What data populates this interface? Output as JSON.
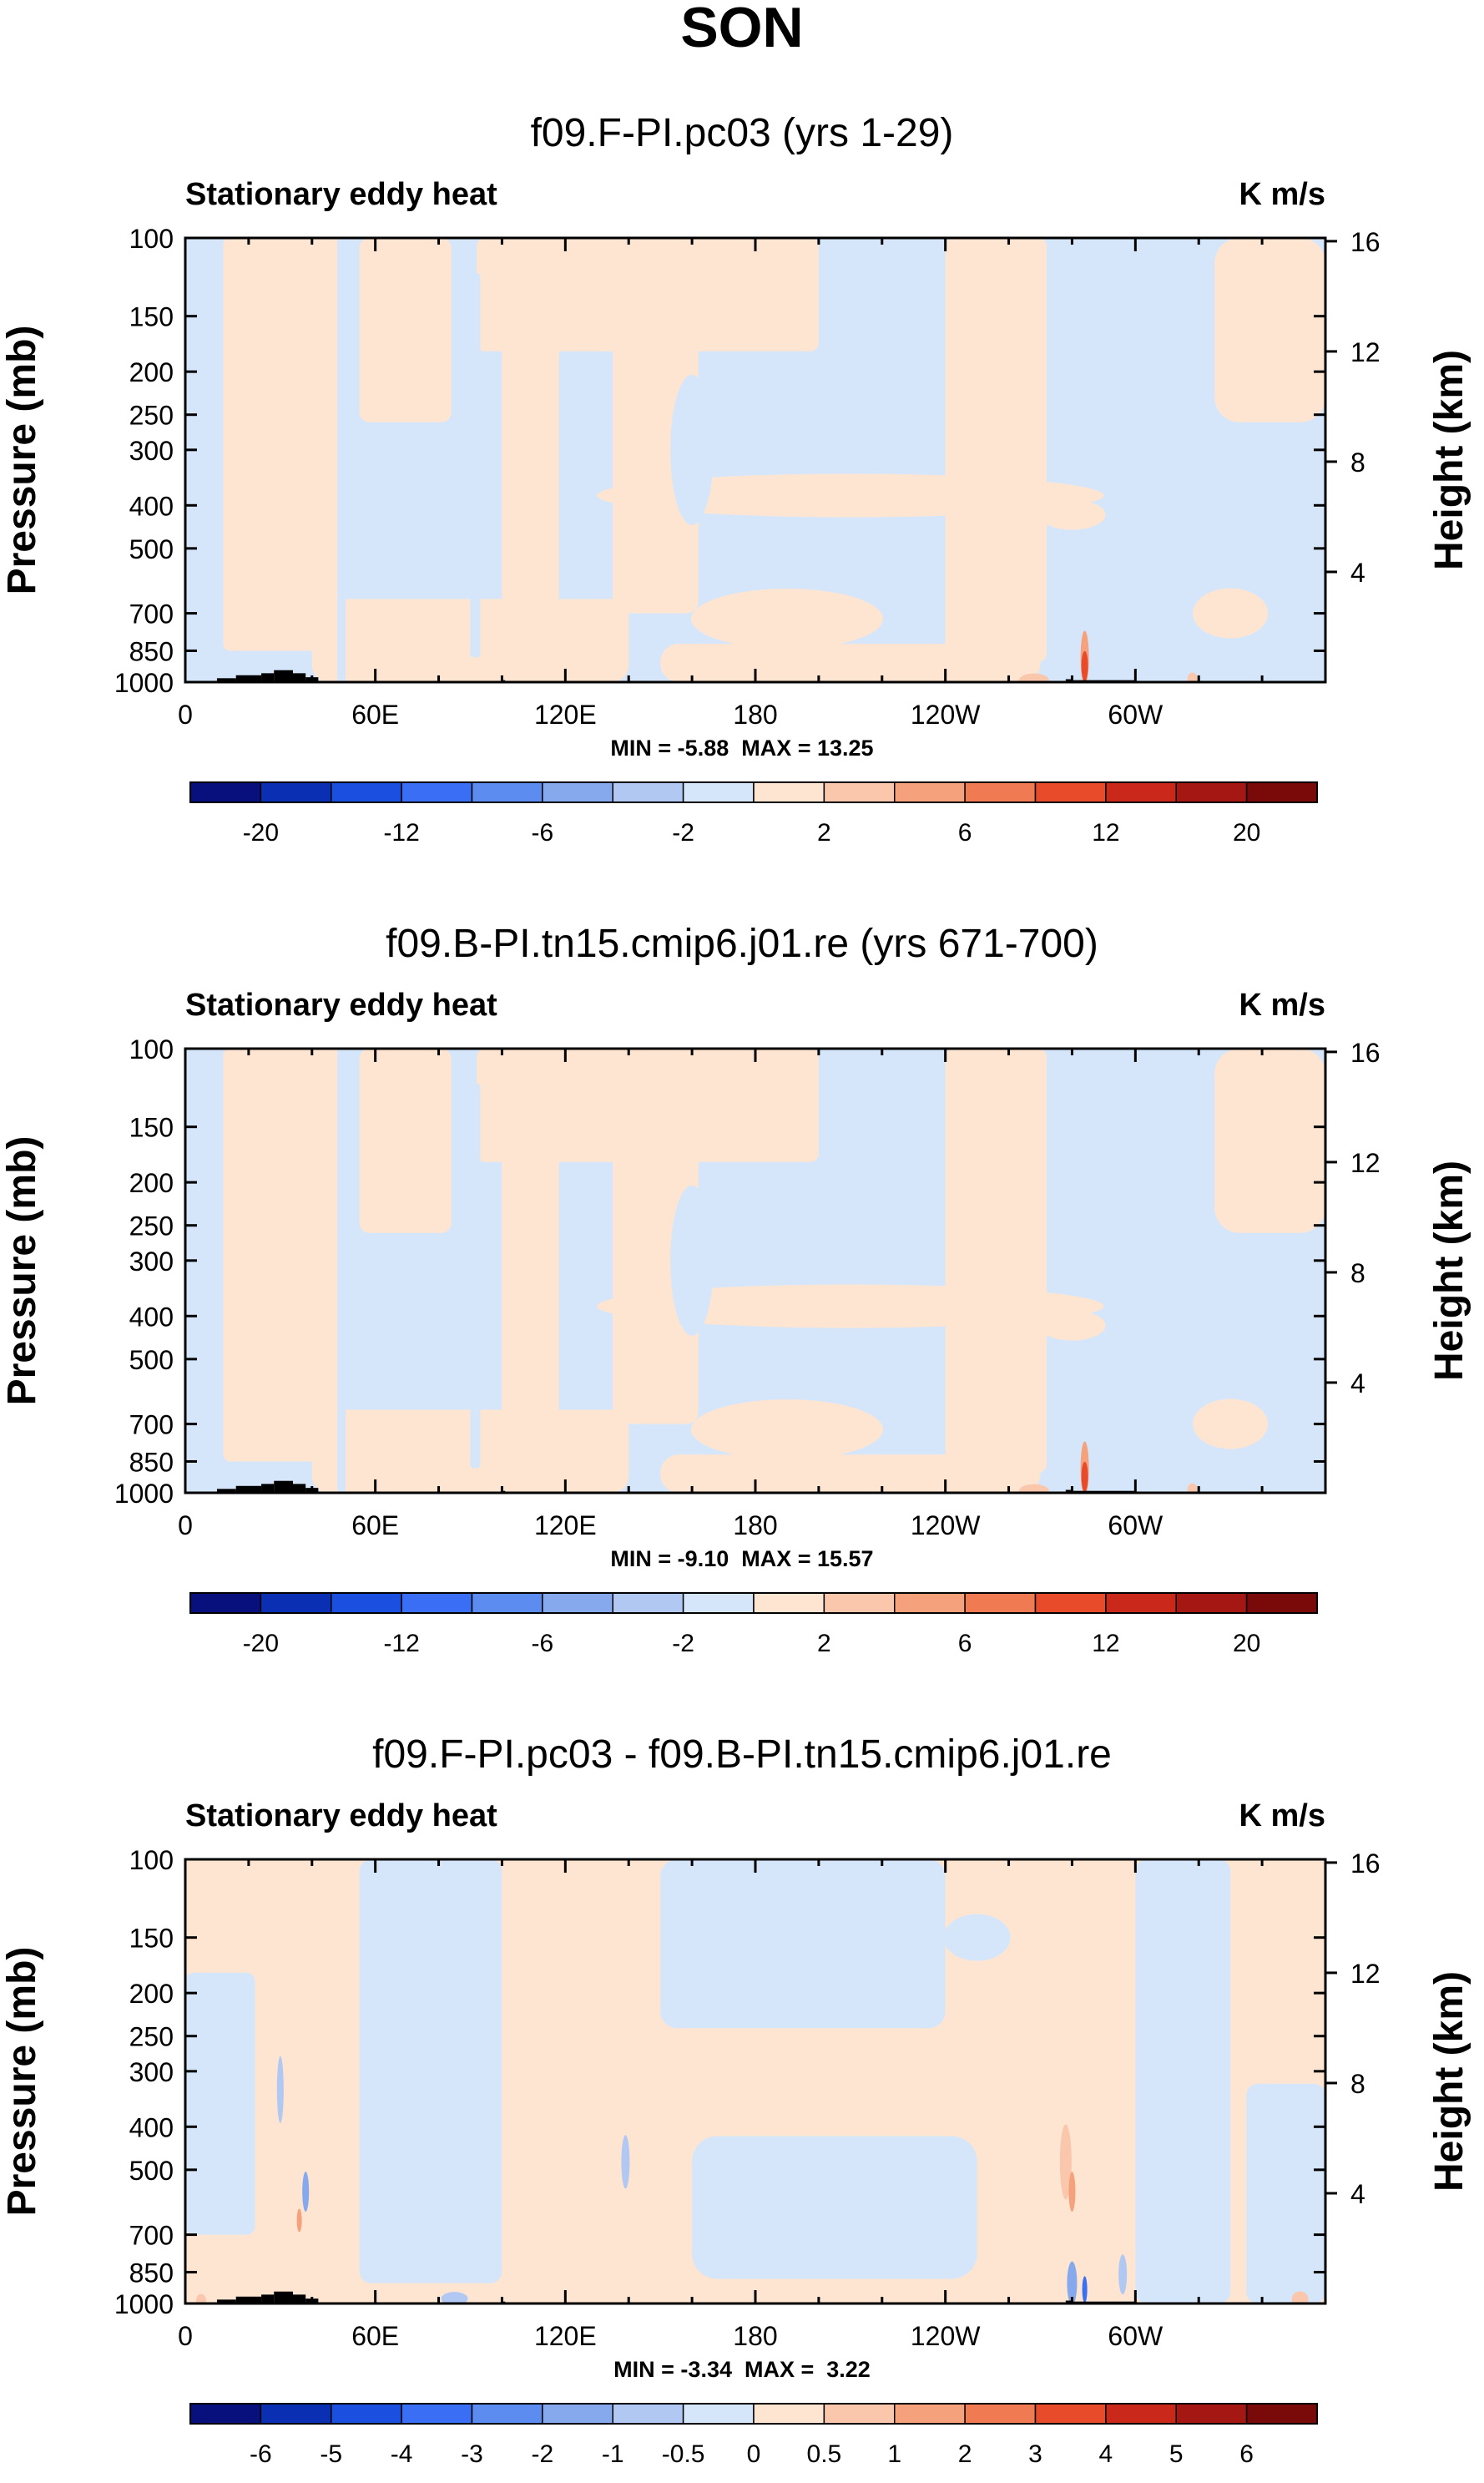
{
  "figure": {
    "season": "SON"
  },
  "chart_data": [
    {
      "type": "heatmap",
      "title": "f09.F-PI.pc03 (yrs 1-29)",
      "left_label": "Stationary eddy heat",
      "units": "K m/s",
      "xlabel": "",
      "ylabel": "Pressure (mb)",
      "ylabel_right": "Height (km)",
      "x_ticks": [
        "0",
        "60E",
        "120E",
        "180",
        "120W",
        "60W"
      ],
      "x_range": [
        0,
        360
      ],
      "y_ticks": [
        "100",
        "150",
        "200",
        "250",
        "300",
        "400",
        "500",
        "700",
        "850",
        "1000"
      ],
      "y_range": [
        100,
        1000
      ],
      "y_right_ticks": [
        "16",
        "12",
        "8",
        "4"
      ],
      "stats": "MIN = -5.88  MAX = 13.25",
      "colorbar_labels": [
        "-20",
        "-12",
        "-6",
        "-2",
        "2",
        "6",
        "12",
        "20"
      ],
      "colorbar_colors": [
        "#08107d",
        "#0b2fb3",
        "#1b4fe0",
        "#3a6ff5",
        "#5c8cf0",
        "#86a9ee",
        "#b1c8f2",
        "#d6e6fa",
        "#fde5d2",
        "#fac7ac",
        "#f5a27c",
        "#f07a52",
        "#e84b2a",
        "#c9281a",
        "#a41712",
        "#7a0a0a"
      ]
    },
    {
      "type": "heatmap",
      "title": "f09.B-PI.tn15.cmip6.j01.re (yrs 671-700)",
      "left_label": "Stationary eddy heat",
      "units": "K m/s",
      "xlabel": "",
      "ylabel": "Pressure (mb)",
      "ylabel_right": "Height (km)",
      "x_ticks": [
        "0",
        "60E",
        "120E",
        "180",
        "120W",
        "60W"
      ],
      "x_range": [
        0,
        360
      ],
      "y_ticks": [
        "100",
        "150",
        "200",
        "250",
        "300",
        "400",
        "500",
        "700",
        "850",
        "1000"
      ],
      "y_range": [
        100,
        1000
      ],
      "y_right_ticks": [
        "16",
        "12",
        "8",
        "4"
      ],
      "stats": "MIN = -9.10  MAX = 15.57",
      "colorbar_labels": [
        "-20",
        "-12",
        "-6",
        "-2",
        "2",
        "6",
        "12",
        "20"
      ],
      "colorbar_colors": [
        "#08107d",
        "#0b2fb3",
        "#1b4fe0",
        "#3a6ff5",
        "#5c8cf0",
        "#86a9ee",
        "#b1c8f2",
        "#d6e6fa",
        "#fde5d2",
        "#fac7ac",
        "#f5a27c",
        "#f07a52",
        "#e84b2a",
        "#c9281a",
        "#a41712",
        "#7a0a0a"
      ]
    },
    {
      "type": "heatmap",
      "title": "f09.F-PI.pc03 - f09.B-PI.tn15.cmip6.j01.re",
      "left_label": "Stationary eddy heat",
      "units": "K m/s",
      "xlabel": "",
      "ylabel": "Pressure (mb)",
      "ylabel_right": "Height (km)",
      "x_ticks": [
        "0",
        "60E",
        "120E",
        "180",
        "120W",
        "60W"
      ],
      "x_range": [
        0,
        360
      ],
      "y_ticks": [
        "100",
        "150",
        "200",
        "250",
        "300",
        "400",
        "500",
        "700",
        "850",
        "1000"
      ],
      "y_range": [
        100,
        1000
      ],
      "y_right_ticks": [
        "16",
        "12",
        "8",
        "4"
      ],
      "stats": "MIN = -3.34  MAX =  3.22",
      "colorbar_labels": [
        "-6",
        "-5",
        "-4",
        "-3",
        "-2",
        "-1",
        "-0.5",
        "0",
        "0.5",
        "1",
        "2",
        "3",
        "4",
        "5",
        "6"
      ],
      "colorbar_colors": [
        "#08107d",
        "#0b2fb3",
        "#1b4fe0",
        "#3a6ff5",
        "#5c8cf0",
        "#86a9ee",
        "#b1c8f2",
        "#d6e6fa",
        "#fde5d2",
        "#fac7ac",
        "#f5a27c",
        "#f07a52",
        "#e84b2a",
        "#c9281a",
        "#a41712",
        "#7a0a0a"
      ]
    }
  ]
}
